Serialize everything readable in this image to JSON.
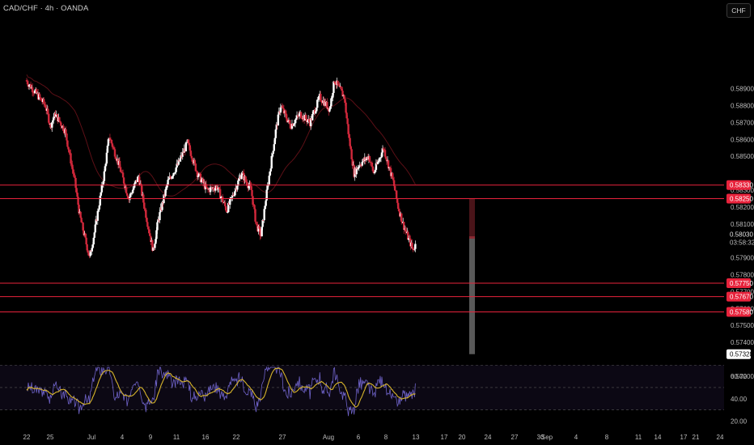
{
  "header": {
    "ticker_label": "CAD/CHF · 4h · OANDA",
    "currency_button": "CHF"
  },
  "colors": {
    "background": "#000000",
    "bullish_candle": "#ffffff",
    "bearish_candle": "#d1283b",
    "level_line": "#e8233c",
    "stop_zone": "#4a1419",
    "target_zone": "#595959",
    "rsi_line": "#6e62c7",
    "rsi_ma_line": "#d7b52b",
    "moving_average": "#5c0f16"
  },
  "chart_data": {
    "type": "candlestick",
    "price_axis": {
      "ticks": [
        "0.58900",
        "0.58800",
        "0.58700",
        "0.58600",
        "0.58500",
        "0.58300",
        "0.58200",
        "0.58100",
        "0.57900",
        "0.57800",
        "0.57700",
        "0.57600",
        "0.57500",
        "0.57400",
        "0.57200"
      ],
      "range": [
        0.571,
        0.5898
      ]
    },
    "time_axis": {
      "labels": [
        "22",
        "25",
        "Jul",
        "4",
        "9",
        "11",
        "16",
        "22",
        "27",
        "Aug",
        "6",
        "8",
        "13",
        "17",
        "20",
        "24",
        "27",
        "30",
        "Sep",
        "4",
        "8",
        "11",
        "14",
        "17",
        "21",
        "24"
      ]
    },
    "level_lines": [
      {
        "price": 0.5833,
        "label": "0.58330"
      },
      {
        "price": 0.5825,
        "label": "0.58250"
      },
      {
        "price": 0.5775,
        "label": "0.57750"
      },
      {
        "price": 0.5767,
        "label": "0.57670"
      },
      {
        "price": 0.5758,
        "label": "0.57580"
      }
    ],
    "current_price": {
      "price": 0.5803,
      "label": "0.58030",
      "countdown": "03:58:32"
    },
    "target_price": {
      "price": 0.5733,
      "label": "0.57328"
    },
    "position": {
      "entry": 0.5802,
      "stop": 0.5825,
      "target": 0.5733,
      "start_date": "Aug 21",
      "end_date": "Sep 21"
    },
    "rsi": {
      "ticks": [
        "60.00",
        "40.00",
        "20.00"
      ],
      "range": [
        15,
        75
      ],
      "levels": [
        70,
        50,
        30
      ]
    }
  }
}
